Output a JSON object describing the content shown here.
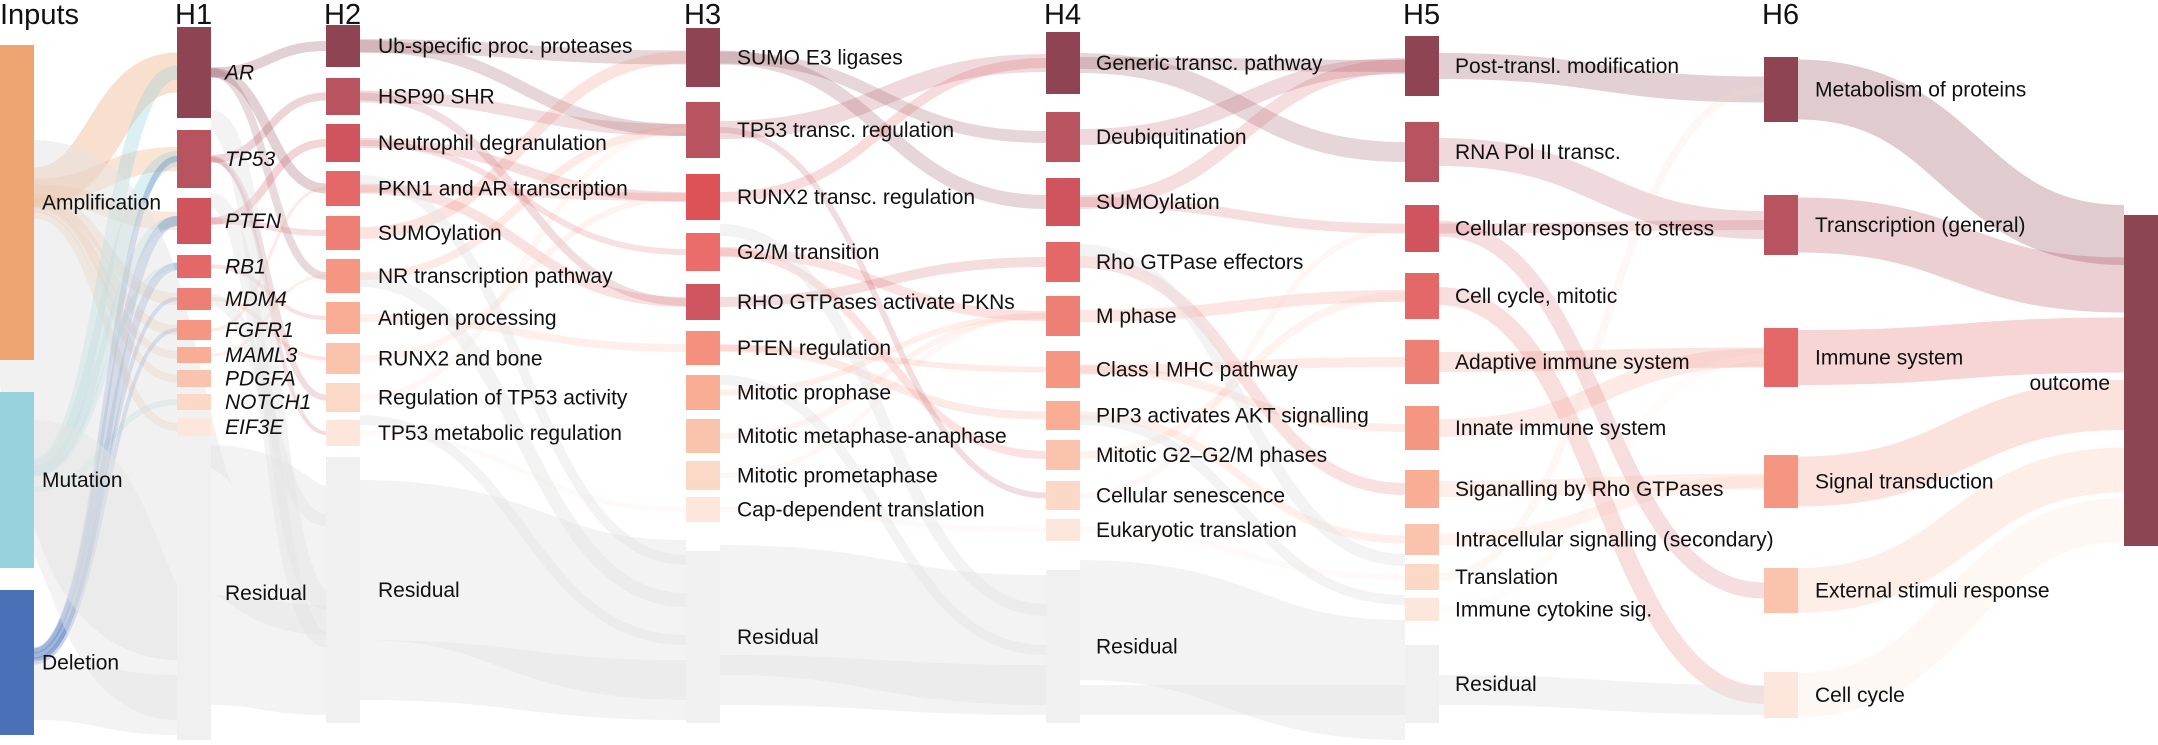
{
  "columns": [
    "Inputs",
    "H1",
    "H2",
    "H3",
    "H4",
    "H5",
    "H6"
  ],
  "colors": {
    "amplification": "#eea470",
    "mutation": "#98d3dd",
    "deletion": "#4a70b8",
    "residual_node": "#f0f0f0",
    "residual_link": "#e4e4e4",
    "outcome": "#8b4553"
  },
  "nodes": {
    "inputs": [
      {
        "label": "Amplification",
        "color": "#eea470"
      },
      {
        "label": "Mutation",
        "color": "#98d3dd"
      },
      {
        "label": "Deletion",
        "color": "#4a70b8"
      }
    ],
    "h1": [
      {
        "label": "AR",
        "color": "#8e4452",
        "italic": true
      },
      {
        "label": "TP53",
        "color": "#b85460",
        "italic": true
      },
      {
        "label": "PTEN",
        "color": "#d0545e",
        "italic": true
      },
      {
        "label": "RB1",
        "color": "#e46868",
        "italic": true
      },
      {
        "label": "MDM4",
        "color": "#ee7f74",
        "italic": true
      },
      {
        "label": "FGFR1",
        "color": "#f59682",
        "italic": true
      },
      {
        "label": "MAML3",
        "color": "#f8ad94",
        "italic": true
      },
      {
        "label": "PDGFA",
        "color": "#fac3ad",
        "italic": true
      },
      {
        "label": "NOTCH1",
        "color": "#fcd8c7",
        "italic": true
      },
      {
        "label": "EIF3E",
        "color": "#fde7dc",
        "italic": true
      },
      {
        "label": "Residual",
        "color": "#f0f0f0"
      }
    ],
    "h2": [
      {
        "label": "Ub-specific proc. proteases",
        "color": "#8e4452"
      },
      {
        "label": "HSP90 SHR",
        "color": "#b85460"
      },
      {
        "label": "Neutrophil degranulation",
        "color": "#d0545e"
      },
      {
        "label": "PKN1 and AR transcription",
        "color": "#e46868"
      },
      {
        "label": "SUMOylation",
        "color": "#ee7f74"
      },
      {
        "label": "NR transcription pathway",
        "color": "#f59682"
      },
      {
        "label": "Antigen processing",
        "color": "#f8ad94"
      },
      {
        "label": "RUNX2 and bone",
        "color": "#fac3ad"
      },
      {
        "label": "Regulation of TP53 activity",
        "color": "#fcd8c7"
      },
      {
        "label": "TP53 metabolic regulation",
        "color": "#fde7dc"
      },
      {
        "label": "Residual",
        "color": "#f0f0f0"
      }
    ],
    "h3": [
      {
        "label": "SUMO E3 ligases",
        "color": "#8e4452"
      },
      {
        "label": "TP53 transc. regulation",
        "color": "#b85460"
      },
      {
        "label": "RUNX2 transc. regulation",
        "color": "#dc5257"
      },
      {
        "label": "G2/M transition",
        "color": "#ec6b6b"
      },
      {
        "label": "RHO GTPases activate PKNs",
        "color": "#cf5560"
      },
      {
        "label": "PTEN regulation",
        "color": "#f6907e"
      },
      {
        "label": "Mitotic prophase",
        "color": "#f8ad94"
      },
      {
        "label": "Mitotic metaphase-anaphase",
        "color": "#fac3ad"
      },
      {
        "label": "Mitotic prometaphase",
        "color": "#fcd8c7"
      },
      {
        "label": "Cap-dependent translation",
        "color": "#fde7dc"
      },
      {
        "label": "Residual",
        "color": "#f0f0f0"
      }
    ],
    "h4": [
      {
        "label": "Generic transc. pathway",
        "color": "#8e4452"
      },
      {
        "label": "Deubiquitination",
        "color": "#b85460"
      },
      {
        "label": "SUMOylation",
        "color": "#d0545e"
      },
      {
        "label": "Rho GTPase effectors",
        "color": "#e46868"
      },
      {
        "label": "M phase",
        "color": "#ee7f74"
      },
      {
        "label": "Class I MHC pathway",
        "color": "#f59682"
      },
      {
        "label": "PIP3 activates AKT signalling",
        "color": "#f8ad94"
      },
      {
        "label": "Mitotic G2–G2/M phases",
        "color": "#fac3ad"
      },
      {
        "label": "Cellular senescence",
        "color": "#fcd8c7"
      },
      {
        "label": "Eukaryotic translation",
        "color": "#fde7dc"
      },
      {
        "label": "Residual",
        "color": "#f0f0f0"
      }
    ],
    "h5": [
      {
        "label": "Post-transl. modification",
        "color": "#8e4452"
      },
      {
        "label": "RNA Pol II transc.",
        "color": "#b85460"
      },
      {
        "label": "Cellular responses to stress",
        "color": "#d0545e"
      },
      {
        "label": "Cell cycle, mitotic",
        "color": "#e46868"
      },
      {
        "label": "Adaptive immune system",
        "color": "#ee7f74"
      },
      {
        "label": "Innate immune system",
        "color": "#f59682"
      },
      {
        "label": "Siganalling by Rho GTPases",
        "color": "#f8ad94"
      },
      {
        "label": "Intracellular signalling (secondary)",
        "color": "#fac3ad"
      },
      {
        "label": "Translation",
        "color": "#fcd8c7"
      },
      {
        "label": "Immune cytokine sig.",
        "color": "#fde7dc"
      },
      {
        "label": "Residual",
        "color": "#f0f0f0"
      }
    ],
    "h6": [
      {
        "label": "Metabolism of proteins",
        "color": "#8e4452"
      },
      {
        "label": "Transcription (general)",
        "color": "#b85460"
      },
      {
        "label": "Immune system",
        "color": "#e46868"
      },
      {
        "label": "Signal transduction",
        "color": "#f59682"
      },
      {
        "label": "External stimuli response",
        "color": "#fac3ad"
      },
      {
        "label": "Cell cycle",
        "color": "#fde7dc"
      }
    ],
    "outcome": [
      {
        "label": "outcome",
        "color": "#8b4553"
      }
    ]
  }
}
